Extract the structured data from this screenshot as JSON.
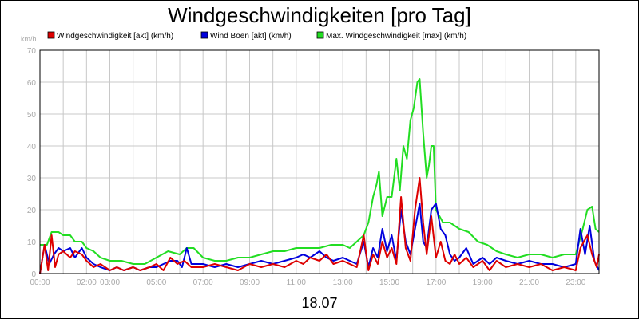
{
  "chart_data": {
    "type": "line",
    "title": "Windgeschwindigkeiten [pro Tag]",
    "ylabel": "km/h",
    "xlabel": "18.07",
    "ylim": [
      0,
      70
    ],
    "yticks": [
      0,
      10,
      20,
      30,
      40,
      50,
      60,
      70
    ],
    "xlim": [
      0,
      24
    ],
    "xticks": [
      {
        "h": 0,
        "label": "00:00"
      },
      {
        "h": 2,
        "label": "02:00"
      },
      {
        "h": 3,
        "label": "03:00"
      },
      {
        "h": 5,
        "label": "05:00"
      },
      {
        "h": 7,
        "label": "07:00"
      },
      {
        "h": 9,
        "label": "09:00"
      },
      {
        "h": 11,
        "label": "11:00"
      },
      {
        "h": 13,
        "label": "13:00"
      },
      {
        "h": 15,
        "label": "15:00"
      },
      {
        "h": 17,
        "label": "17:00"
      },
      {
        "h": 19,
        "label": "19:00"
      },
      {
        "h": 21,
        "label": "21:00"
      },
      {
        "h": 23,
        "label": "23:00"
      }
    ],
    "grid": true,
    "legend_position": "top",
    "series": [
      {
        "name": "Max. Windgeschwindigkeit [max] (km/h)",
        "color": "#22dd22",
        "points": [
          [
            0,
            9
          ],
          [
            0.3,
            9
          ],
          [
            0.5,
            13
          ],
          [
            0.8,
            13
          ],
          [
            1.0,
            12
          ],
          [
            1.3,
            12
          ],
          [
            1.5,
            10
          ],
          [
            1.8,
            10
          ],
          [
            2.0,
            8
          ],
          [
            2.3,
            7
          ],
          [
            2.6,
            5
          ],
          [
            3.0,
            4
          ],
          [
            3.5,
            4
          ],
          [
            4.0,
            3
          ],
          [
            4.5,
            3
          ],
          [
            5.0,
            5
          ],
          [
            5.5,
            7
          ],
          [
            6.0,
            6
          ],
          [
            6.3,
            8
          ],
          [
            6.6,
            8
          ],
          [
            7.0,
            5
          ],
          [
            7.5,
            4
          ],
          [
            8.0,
            4
          ],
          [
            8.5,
            5
          ],
          [
            9.0,
            5
          ],
          [
            9.5,
            6
          ],
          [
            10.0,
            7
          ],
          [
            10.5,
            7
          ],
          [
            11.0,
            8
          ],
          [
            11.5,
            8
          ],
          [
            12.0,
            8
          ],
          [
            12.5,
            9
          ],
          [
            13.0,
            9
          ],
          [
            13.3,
            8
          ],
          [
            13.6,
            10
          ],
          [
            13.9,
            12
          ],
          [
            14.1,
            16
          ],
          [
            14.3,
            24
          ],
          [
            14.45,
            28
          ],
          [
            14.55,
            32
          ],
          [
            14.7,
            18
          ],
          [
            14.9,
            24
          ],
          [
            15.1,
            24
          ],
          [
            15.3,
            36
          ],
          [
            15.45,
            26
          ],
          [
            15.6,
            40
          ],
          [
            15.75,
            36
          ],
          [
            15.9,
            48
          ],
          [
            16.05,
            52
          ],
          [
            16.2,
            60
          ],
          [
            16.3,
            61
          ],
          [
            16.45,
            44
          ],
          [
            16.6,
            30
          ],
          [
            16.7,
            34
          ],
          [
            16.8,
            40
          ],
          [
            16.9,
            40
          ],
          [
            17.0,
            20
          ],
          [
            17.3,
            16
          ],
          [
            17.6,
            16
          ],
          [
            18.0,
            14
          ],
          [
            18.4,
            13
          ],
          [
            18.8,
            10
          ],
          [
            19.2,
            9
          ],
          [
            19.6,
            7
          ],
          [
            20.0,
            6
          ],
          [
            20.5,
            5
          ],
          [
            21.0,
            6
          ],
          [
            21.5,
            6
          ],
          [
            22.0,
            5
          ],
          [
            22.5,
            6
          ],
          [
            23.0,
            6
          ],
          [
            23.3,
            14
          ],
          [
            23.5,
            20
          ],
          [
            23.7,
            21
          ],
          [
            23.85,
            14
          ],
          [
            24.0,
            13
          ]
        ]
      },
      {
        "name": "Wind Böen [akt] (km/h)",
        "color": "#0000dd",
        "points": [
          [
            0,
            0
          ],
          [
            0.2,
            9
          ],
          [
            0.4,
            3
          ],
          [
            0.6,
            6
          ],
          [
            0.8,
            8
          ],
          [
            1.0,
            7
          ],
          [
            1.3,
            8
          ],
          [
            1.5,
            5
          ],
          [
            1.8,
            8
          ],
          [
            2.0,
            5
          ],
          [
            2.3,
            3
          ],
          [
            2.6,
            2
          ],
          [
            3.0,
            1
          ],
          [
            3.3,
            2
          ],
          [
            3.6,
            1
          ],
          [
            4.0,
            2
          ],
          [
            4.3,
            1
          ],
          [
            4.7,
            2
          ],
          [
            5.0,
            2
          ],
          [
            5.3,
            3
          ],
          [
            5.6,
            4
          ],
          [
            5.9,
            4
          ],
          [
            6.1,
            2
          ],
          [
            6.3,
            8
          ],
          [
            6.5,
            3
          ],
          [
            7.0,
            3
          ],
          [
            7.5,
            2
          ],
          [
            8.0,
            3
          ],
          [
            8.5,
            2
          ],
          [
            9.0,
            3
          ],
          [
            9.5,
            4
          ],
          [
            10.0,
            3
          ],
          [
            10.5,
            4
          ],
          [
            11.0,
            5
          ],
          [
            11.3,
            6
          ],
          [
            11.6,
            5
          ],
          [
            12.0,
            7
          ],
          [
            12.3,
            5
          ],
          [
            12.6,
            4
          ],
          [
            13.0,
            5
          ],
          [
            13.3,
            4
          ],
          [
            13.6,
            3
          ],
          [
            13.9,
            10
          ],
          [
            14.1,
            2
          ],
          [
            14.3,
            8
          ],
          [
            14.5,
            5
          ],
          [
            14.7,
            14
          ],
          [
            14.9,
            7
          ],
          [
            15.1,
            12
          ],
          [
            15.3,
            4
          ],
          [
            15.5,
            20
          ],
          [
            15.7,
            10
          ],
          [
            15.9,
            6
          ],
          [
            16.1,
            14
          ],
          [
            16.3,
            22
          ],
          [
            16.45,
            10
          ],
          [
            16.6,
            8
          ],
          [
            16.8,
            20
          ],
          [
            17.0,
            22
          ],
          [
            17.2,
            14
          ],
          [
            17.4,
            12
          ],
          [
            17.6,
            6
          ],
          [
            17.8,
            4
          ],
          [
            18.0,
            5
          ],
          [
            18.3,
            8
          ],
          [
            18.6,
            3
          ],
          [
            19.0,
            5
          ],
          [
            19.3,
            3
          ],
          [
            19.6,
            5
          ],
          [
            20.0,
            4
          ],
          [
            20.5,
            3
          ],
          [
            21.0,
            4
          ],
          [
            21.5,
            3
          ],
          [
            22.0,
            3
          ],
          [
            22.5,
            2
          ],
          [
            23.0,
            3
          ],
          [
            23.2,
            14
          ],
          [
            23.4,
            6
          ],
          [
            23.6,
            15
          ],
          [
            23.8,
            4
          ],
          [
            24.0,
            1
          ]
        ]
      },
      {
        "name": "Windgeschwindigkeit [akt] (km/h)",
        "color": "#dd0000",
        "points": [
          [
            0,
            0
          ],
          [
            0.2,
            9
          ],
          [
            0.35,
            1
          ],
          [
            0.5,
            12
          ],
          [
            0.65,
            2
          ],
          [
            0.8,
            6
          ],
          [
            1.0,
            7
          ],
          [
            1.3,
            5
          ],
          [
            1.5,
            7
          ],
          [
            1.8,
            6
          ],
          [
            2.0,
            4
          ],
          [
            2.3,
            2
          ],
          [
            2.6,
            3
          ],
          [
            3.0,
            1
          ],
          [
            3.3,
            2
          ],
          [
            3.6,
            1
          ],
          [
            4.0,
            2
          ],
          [
            4.3,
            1
          ],
          [
            4.7,
            2
          ],
          [
            5.0,
            3
          ],
          [
            5.3,
            1
          ],
          [
            5.6,
            5
          ],
          [
            5.9,
            3
          ],
          [
            6.2,
            4
          ],
          [
            6.5,
            2
          ],
          [
            7.0,
            2
          ],
          [
            7.5,
            3
          ],
          [
            8.0,
            2
          ],
          [
            8.5,
            1
          ],
          [
            9.0,
            3
          ],
          [
            9.5,
            2
          ],
          [
            10.0,
            3
          ],
          [
            10.5,
            2
          ],
          [
            11.0,
            4
          ],
          [
            11.3,
            3
          ],
          [
            11.6,
            5
          ],
          [
            12.0,
            4
          ],
          [
            12.3,
            6
          ],
          [
            12.6,
            3
          ],
          [
            13.0,
            4
          ],
          [
            13.3,
            3
          ],
          [
            13.6,
            2
          ],
          [
            13.9,
            12
          ],
          [
            14.1,
            1
          ],
          [
            14.3,
            6
          ],
          [
            14.5,
            3
          ],
          [
            14.7,
            10
          ],
          [
            14.9,
            5
          ],
          [
            15.1,
            8
          ],
          [
            15.3,
            3
          ],
          [
            15.5,
            24
          ],
          [
            15.7,
            8
          ],
          [
            15.9,
            4
          ],
          [
            16.1,
            20
          ],
          [
            16.3,
            30
          ],
          [
            16.45,
            16
          ],
          [
            16.6,
            6
          ],
          [
            16.8,
            18
          ],
          [
            17.0,
            5
          ],
          [
            17.2,
            10
          ],
          [
            17.4,
            4
          ],
          [
            17.6,
            3
          ],
          [
            17.8,
            6
          ],
          [
            18.0,
            3
          ],
          [
            18.3,
            5
          ],
          [
            18.6,
            2
          ],
          [
            19.0,
            4
          ],
          [
            19.3,
            1
          ],
          [
            19.6,
            4
          ],
          [
            20.0,
            2
          ],
          [
            20.5,
            3
          ],
          [
            21.0,
            2
          ],
          [
            21.5,
            3
          ],
          [
            22.0,
            1
          ],
          [
            22.5,
            2
          ],
          [
            23.0,
            1
          ],
          [
            23.2,
            8
          ],
          [
            23.5,
            12
          ],
          [
            23.7,
            6
          ],
          [
            23.9,
            2
          ],
          [
            24.0,
            6
          ]
        ]
      }
    ]
  }
}
